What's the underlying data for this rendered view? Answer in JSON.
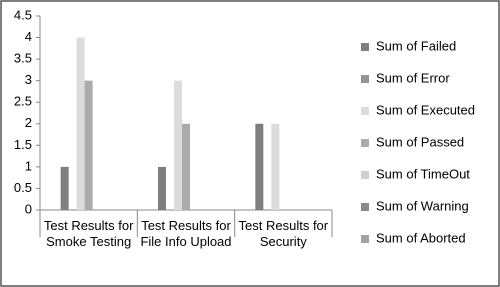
{
  "chart_data": {
    "type": "bar",
    "categories": [
      "Test Results for Smoke Testing",
      "Test Results for File Info Upload",
      "Test Results for Security"
    ],
    "series": [
      {
        "name": "Sum of Failed",
        "color": "#7f7f7f",
        "values": [
          1,
          1,
          2
        ]
      },
      {
        "name": "Sum of Error",
        "color": "#959595",
        "values": [
          0,
          0,
          0
        ]
      },
      {
        "name": "Sum of Executed",
        "color": "#dcdcdc",
        "values": [
          4,
          3,
          2
        ]
      },
      {
        "name": "Sum of Passed",
        "color": "#ababab",
        "values": [
          3,
          2,
          0
        ]
      },
      {
        "name": "Sum of TimeOut",
        "color": "#cfcfcf",
        "values": [
          0,
          0,
          0
        ]
      },
      {
        "name": "Sum of Warning",
        "color": "#8a8a8a",
        "values": [
          0,
          0,
          0
        ]
      },
      {
        "name": "Sum of Aborted",
        "color": "#a3a3a3",
        "values": [
          0,
          0,
          0
        ]
      }
    ],
    "ylim": [
      0,
      4.5
    ],
    "yticks": [
      0,
      0.5,
      1,
      1.5,
      2,
      2.5,
      3,
      3.5,
      4,
      4.5
    ],
    "grid": false
  }
}
